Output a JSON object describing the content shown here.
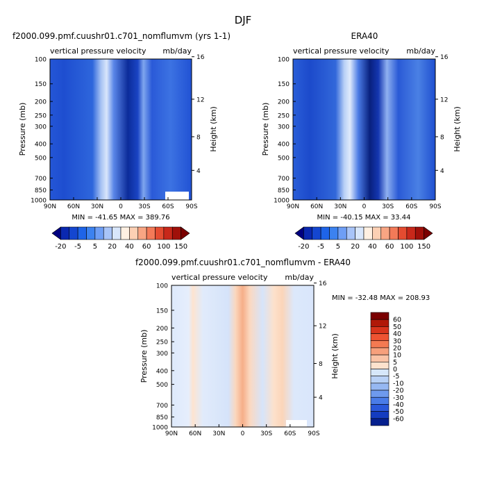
{
  "figure": {
    "title": "DJF"
  },
  "chart_data": [
    {
      "type": "heatmap",
      "title": "f2000.099.pmf.cuushr01.c701_nomflumvm (yrs 1-1)",
      "subtitle_left": "vertical pressure velocity",
      "subtitle_right": "mb/day",
      "ylabel": "Pressure (mb)",
      "ylabel_right": "Height (km)",
      "x_ticks": [
        "90N",
        "60N",
        "30N",
        "0",
        "30S",
        "60S",
        "90S"
      ],
      "x_values": [
        90,
        60,
        30,
        0,
        -30,
        -60,
        -90
      ],
      "xlim": [
        90,
        -90
      ],
      "y_ticks": [
        "100",
        "150",
        "200",
        "250",
        "300",
        "400",
        "500",
        "700",
        "850",
        "1000"
      ],
      "y_values": [
        100,
        150,
        200,
        250,
        300,
        400,
        500,
        700,
        850,
        1000
      ],
      "ylim": [
        1000,
        100
      ],
      "y_scale": "log",
      "height_ticks": [
        "4",
        "8",
        "12",
        "16"
      ],
      "height_values": [
        4,
        8,
        12,
        16
      ],
      "stats": "MIN = -41.65   MAX = 389.76",
      "min": -41.65,
      "max": 389.76
    },
    {
      "type": "heatmap",
      "title": "ERA40",
      "subtitle_left": "vertical pressure velocity",
      "subtitle_right": "mb/day",
      "ylabel": "Pressure (mb)",
      "ylabel_right": "Height (km)",
      "x_ticks": [
        "90N",
        "60N",
        "30N",
        "0",
        "30S",
        "60S",
        "90S"
      ],
      "x_values": [
        90,
        60,
        30,
        0,
        -30,
        -60,
        -90
      ],
      "xlim": [
        90,
        -90
      ],
      "y_ticks": [
        "100",
        "150",
        "200",
        "250",
        "300",
        "400",
        "500",
        "700",
        "850",
        "1000"
      ],
      "y_values": [
        100,
        150,
        200,
        250,
        300,
        400,
        500,
        700,
        850,
        1000
      ],
      "ylim": [
        1000,
        100
      ],
      "y_scale": "log",
      "height_ticks": [
        "4",
        "8",
        "12",
        "16"
      ],
      "height_values": [
        4,
        8,
        12,
        16
      ],
      "stats": "MIN = -40.15   MAX =  33.44",
      "min": -40.15,
      "max": 33.44
    },
    {
      "type": "heatmap",
      "title": "f2000.099.pmf.cuushr01.c701_nomflumvm - ERA40",
      "subtitle_left": "vertical pressure velocity",
      "subtitle_right": "mb/day",
      "ylabel": "Pressure (mb)",
      "ylabel_right": "Height (km)",
      "x_ticks": [
        "90N",
        "60N",
        "30N",
        "0",
        "30S",
        "60S",
        "90S"
      ],
      "x_values": [
        90,
        60,
        30,
        0,
        -30,
        -60,
        -90
      ],
      "xlim": [
        90,
        -90
      ],
      "y_ticks": [
        "100",
        "150",
        "200",
        "250",
        "300",
        "400",
        "500",
        "700",
        "850",
        "1000"
      ],
      "y_values": [
        100,
        150,
        200,
        250,
        300,
        400,
        500,
        700,
        850,
        1000
      ],
      "ylim": [
        1000,
        100
      ],
      "y_scale": "log",
      "height_ticks": [
        "4",
        "8",
        "12",
        "16"
      ],
      "height_values": [
        4,
        8,
        12,
        16
      ],
      "stats": "MIN = -32.48   MAX = 208.93",
      "min": -32.48,
      "max": 208.93
    }
  ],
  "colorbar_top": {
    "labels": [
      "-20",
      "-5",
      "5",
      "20",
      "40",
      "60",
      "100",
      "150"
    ],
    "colors": [
      "#00007f",
      "#0a28b0",
      "#1446d0",
      "#1e64e8",
      "#3c82f0",
      "#6e9ef5",
      "#a8c4f8",
      "#d8e6fb",
      "#fff0e2",
      "#fcd0b4",
      "#f8a583",
      "#f37a58",
      "#e44b30",
      "#c8281a",
      "#a0100a",
      "#7a0000"
    ]
  },
  "colorbar_diff": {
    "labels": [
      "60",
      "50",
      "40",
      "30",
      "20",
      "10",
      "5",
      "0",
      "-5",
      "-10",
      "-20",
      "-30",
      "-40",
      "-50",
      "-60"
    ],
    "colors": [
      "#7a0000",
      "#b01808",
      "#d8341c",
      "#ee5332",
      "#f47a52",
      "#f7a07c",
      "#fac3a6",
      "#fde2cd",
      "#d6e7fa",
      "#b8d1f6",
      "#96b8f2",
      "#6e9aee",
      "#4a7ce8",
      "#2a58da",
      "#143cc0",
      "#06208e"
    ]
  }
}
